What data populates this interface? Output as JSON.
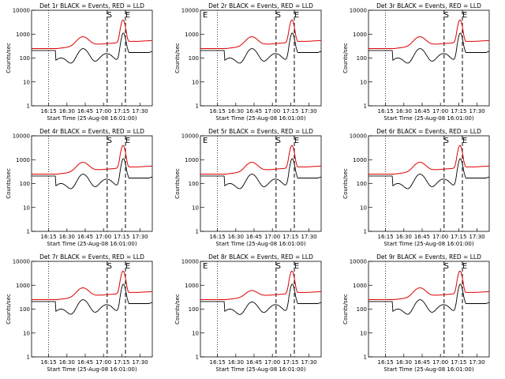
{
  "chart_data": {
    "type": "line",
    "yscale": "log",
    "ylim": [
      1,
      10000
    ],
    "xlim": [
      "16:01",
      "17:40"
    ],
    "ylabel": "Counts/sec",
    "xlabel": "Start Time (25-Aug-08 16:01:00)",
    "x_ticks": [
      "16:15",
      "16:30",
      "16:45",
      "17:00",
      "17:15",
      "17:30"
    ],
    "y_ticks": [
      "1",
      "10",
      "100",
      "1000",
      "10000"
    ],
    "series_colors": {
      "events": "#000000",
      "lld": "#e00000"
    },
    "panels": [
      {
        "title": "Det 1r BLACK = Events, RED = LLD",
        "markers": {
          "S": "17:03",
          "E": "17:18"
        }
      },
      {
        "title": "Det 2r BLACK = Events, RED = LLD",
        "markers": {
          "E_left": "16:01",
          "S": "17:03",
          "E": "17:18"
        }
      },
      {
        "title": "Det 3r BLACK = Events, RED = LLD",
        "markers": {
          "S": "17:03",
          "E": "17:18"
        }
      },
      {
        "title": "Det 4r BLACK = Events, RED = LLD",
        "markers": {
          "S": "17:03",
          "E": "17:18"
        }
      },
      {
        "title": "Det 5r BLACK = Events, RED = LLD",
        "markers": {
          "E_left": "16:01",
          "S": "17:03",
          "E": "17:18"
        }
      },
      {
        "title": "Det 6r BLACK = Events, RED = LLD",
        "markers": {
          "S": "17:03",
          "E": "17:18"
        }
      },
      {
        "title": "Det 7r BLACK = Events, RED = LLD",
        "markers": {
          "S": "17:03",
          "E": "17:18"
        }
      },
      {
        "title": "Det 8r BLACK = Events, RED = LLD",
        "markers": {
          "E_left": "16:01",
          "S": "17:03",
          "E": "17:18"
        }
      },
      {
        "title": "Det 9r BLACK = Events, RED = LLD",
        "markers": {
          "S": "17:03",
          "E": "17:18"
        }
      }
    ]
  }
}
